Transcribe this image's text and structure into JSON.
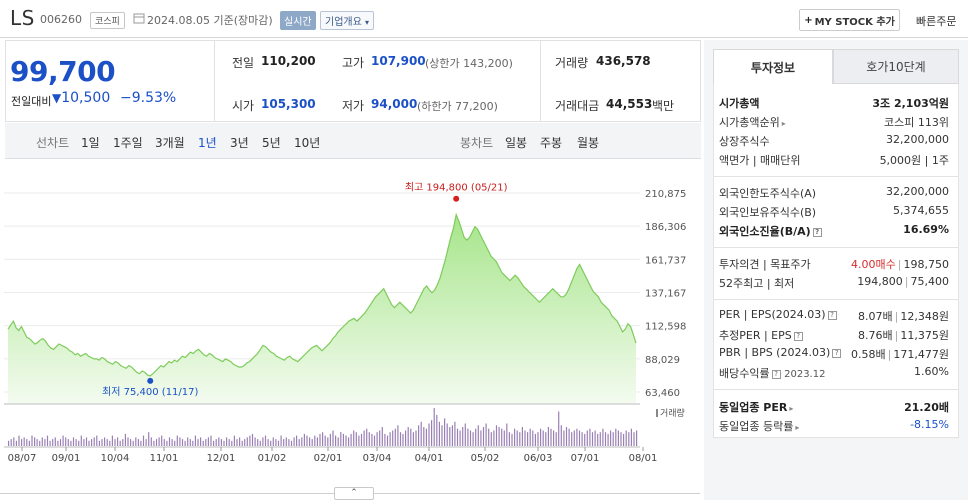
{
  "header": {
    "company": "LS",
    "code": "006260",
    "market": "코스피",
    "date": "2024.08.05 기준(장마감)",
    "realtime": "실시간",
    "overview": "기업개요",
    "my_stock": "MY STOCK 추가",
    "quick_order": "빠른주문"
  },
  "price": {
    "current": "99,700",
    "prev_label": "전일대비",
    "change": "10,500",
    "change_pct": "−9.53%"
  },
  "quote": {
    "prev_close_label": "전일",
    "prev_close": "110,200",
    "high_label": "고가",
    "high": "107,900",
    "upper_limit": "(상한가 143,200)",
    "volume_label": "거래량",
    "volume": "436,578",
    "open_label": "시가",
    "open": "105,300",
    "low_label": "저가",
    "low": "94,000",
    "lower_limit": "(하한가 77,200)",
    "amount_label": "거래대금",
    "amount": "44,553",
    "amount_unit": "백만"
  },
  "tabs": {
    "line_chart": "선차트",
    "periods": [
      "1일",
      "1주일",
      "3개월",
      "1년",
      "3년",
      "5년",
      "10년"
    ],
    "selected": "1년",
    "candle": "봉차트",
    "candle_periods": [
      "일봉",
      "주봉",
      "월봉"
    ]
  },
  "chart_data": {
    "type": "area",
    "yticks": [
      "210,875",
      "186,306",
      "161,737",
      "137,167",
      "112,598",
      "88,029",
      "63,460"
    ],
    "ylim": [
      63460,
      210875
    ],
    "xticks": [
      "08/07",
      "09/01",
      "10/04",
      "11/01",
      "12/01",
      "01/02",
      "02/01",
      "03/04",
      "04/01",
      "05/02",
      "06/03",
      "07/01",
      "08/01"
    ],
    "max_label": "최고 194,800 (05/21)",
    "min_label": "최저 75,400 (11/17)",
    "volume_legend": "거래량",
    "series": [
      {
        "values": [
          110000,
          113000,
          116000,
          111000,
          109000,
          112000,
          108000,
          104000,
          103000,
          101000,
          99000,
          100000,
          102000,
          103000,
          101000,
          98000,
          96000,
          95000,
          97000,
          99000,
          98000,
          97000,
          96000,
          94000,
          93000,
          91000,
          92000,
          90000,
          91000,
          92000,
          90000,
          89000,
          88000,
          88000,
          87000,
          89000,
          88000,
          86000,
          85000,
          84000,
          86000,
          85000,
          83000,
          82000,
          81000,
          83000,
          82000,
          80000,
          78000,
          77000,
          79000,
          78000,
          76000,
          75400,
          77000,
          79000,
          81000,
          83000,
          82000,
          84000,
          86000,
          85000,
          87000,
          86000,
          88000,
          90000,
          89000,
          91000,
          93000,
          92000,
          94000,
          95000,
          93000,
          91000,
          90000,
          92000,
          91000,
          89000,
          88000,
          87000,
          86000,
          88000,
          87000,
          86000,
          84000,
          83000,
          82000,
          82000,
          83000,
          85000,
          86000,
          88000,
          90000,
          92000,
          95000,
          98000,
          97000,
          95000,
          93000,
          92000,
          90000,
          89000,
          88000,
          87000,
          89000,
          90000,
          88000,
          87000,
          86000,
          88000,
          90000,
          92000,
          94000,
          96000,
          97000,
          98000,
          96000,
          94000,
          96000,
          98000,
          100000,
          103000,
          105000,
          108000,
          110000,
          112000,
          114000,
          116000,
          117000,
          118000,
          116000,
          118000,
          120000,
          122000,
          125000,
          128000,
          131000,
          134000,
          136000,
          138000,
          140000,
          136000,
          132000,
          128000,
          126000,
          128000,
          130000,
          128000,
          126000,
          124000,
          122000,
          124000,
          128000,
          132000,
          136000,
          140000,
          142000,
          139000,
          137000,
          139000,
          143000,
          148000,
          155000,
          162000,
          170000,
          178000,
          185000,
          194800,
          190000,
          184000,
          178000,
          176000,
          178000,
          182000,
          186000,
          184000,
          180000,
          176000,
          172000,
          168000,
          164000,
          162000,
          160000,
          156000,
          152000,
          150000,
          148000,
          146000,
          148000,
          150000,
          148000,
          145000,
          142000,
          140000,
          138000,
          136000,
          134000,
          132000,
          130000,
          132000,
          134000,
          136000,
          138000,
          140000,
          138000,
          136000,
          134000,
          134000,
          136000,
          140000,
          145000,
          150000,
          155000,
          158000,
          154000,
          150000,
          146000,
          142000,
          138000,
          136000,
          134000,
          130000,
          128000,
          126000,
          124000,
          120000,
          118000,
          116000,
          112000,
          108000,
          110000,
          114000,
          112000,
          106000,
          99700
        ]
      }
    ],
    "volume": [
      3,
      4,
      5,
      3,
      6,
      4,
      5,
      4,
      3,
      6,
      5,
      4,
      3,
      5,
      4,
      6,
      3,
      4,
      5,
      3,
      4,
      6,
      5,
      4,
      3,
      5,
      4,
      3,
      6,
      4,
      5,
      3,
      4,
      5,
      6,
      3,
      4,
      5,
      4,
      3,
      6,
      4,
      5,
      3,
      4,
      7,
      5,
      4,
      3,
      5,
      4,
      3,
      6,
      4,
      8,
      5,
      3,
      4,
      5,
      6,
      4,
      3,
      5,
      4,
      3,
      6,
      5,
      4,
      3,
      5,
      4,
      3,
      6,
      4,
      5,
      3,
      4,
      5,
      6,
      3,
      4,
      5,
      4,
      3,
      5,
      4,
      3,
      6,
      4,
      5,
      3,
      4,
      5,
      6,
      7,
      5,
      4,
      3,
      5,
      6,
      4,
      3,
      5,
      4,
      3,
      6,
      4,
      5,
      4,
      3,
      5,
      6,
      4,
      5,
      7,
      6,
      5,
      4,
      6,
      5,
      7,
      8,
      6,
      5,
      7,
      9,
      6,
      5,
      8,
      7,
      6,
      5,
      7,
      9,
      8,
      6,
      7,
      9,
      10,
      8,
      7,
      6,
      8,
      9,
      11,
      7,
      6,
      8,
      9,
      10,
      12,
      8,
      7,
      9,
      11,
      10,
      8,
      9,
      12,
      14,
      11,
      10,
      13,
      15,
      22,
      18,
      14,
      12,
      16,
      13,
      11,
      12,
      14,
      10,
      9,
      11,
      13,
      10,
      9,
      8,
      10,
      12,
      9,
      11,
      13,
      10,
      8,
      9,
      12,
      11,
      10,
      9,
      13,
      8,
      7,
      10,
      9,
      8,
      11,
      9,
      8,
      10,
      9,
      7,
      8,
      10,
      9,
      8,
      11,
      10,
      9,
      8,
      20,
      12,
      9,
      11,
      10,
      8,
      9,
      10,
      9,
      8,
      7,
      9,
      10,
      8,
      9,
      7,
      8,
      10,
      8,
      7,
      9,
      8,
      10,
      9,
      8,
      7,
      9,
      8,
      10,
      8,
      9
    ]
  },
  "invest": {
    "tabs": [
      "투자정보",
      "호가10단계"
    ],
    "rows1": [
      {
        "k": "시가총액",
        "v": "3조 2,103억원"
      },
      {
        "k": "시가총액순위",
        "v": "코스피 113위"
      },
      {
        "k": "상장주식수",
        "v": "32,200,000"
      },
      {
        "k": "액면가 | 매매단위",
        "v": "5,000원 | 1주"
      }
    ],
    "rows2": [
      {
        "k": "외국인한도주식수(A)",
        "v": "32,200,000"
      },
      {
        "k": "외국인보유주식수(B)",
        "v": "5,374,655"
      },
      {
        "k": "외국인소진율(B/A)",
        "v": "16.69%"
      }
    ],
    "opinion_label": "투자의견 | 목표주가",
    "opinion": "4.00매수",
    "target": "198,750",
    "w52_label": "52주최고 | 최저",
    "w52_high": "194,800",
    "w52_low": "75,400",
    "per_label": "PER | EPS(2024.03)",
    "per": "8.07배",
    "eps": "12,348원",
    "est_label": "추정PER | EPS",
    "est_per": "8.76배",
    "est_eps": "11,375원",
    "pbr_label": "PBR | BPS (2024.03)",
    "pbr": "0.58배",
    "bps": "171,477원",
    "div_label": "배당수익률",
    "div_date": "2023.12",
    "div": "1.60%",
    "sector_per_label": "동일업종 PER",
    "sector_per": "21.20배",
    "sector_rate_label": "동일업종 등락률",
    "sector_rate": "-8.15%"
  }
}
